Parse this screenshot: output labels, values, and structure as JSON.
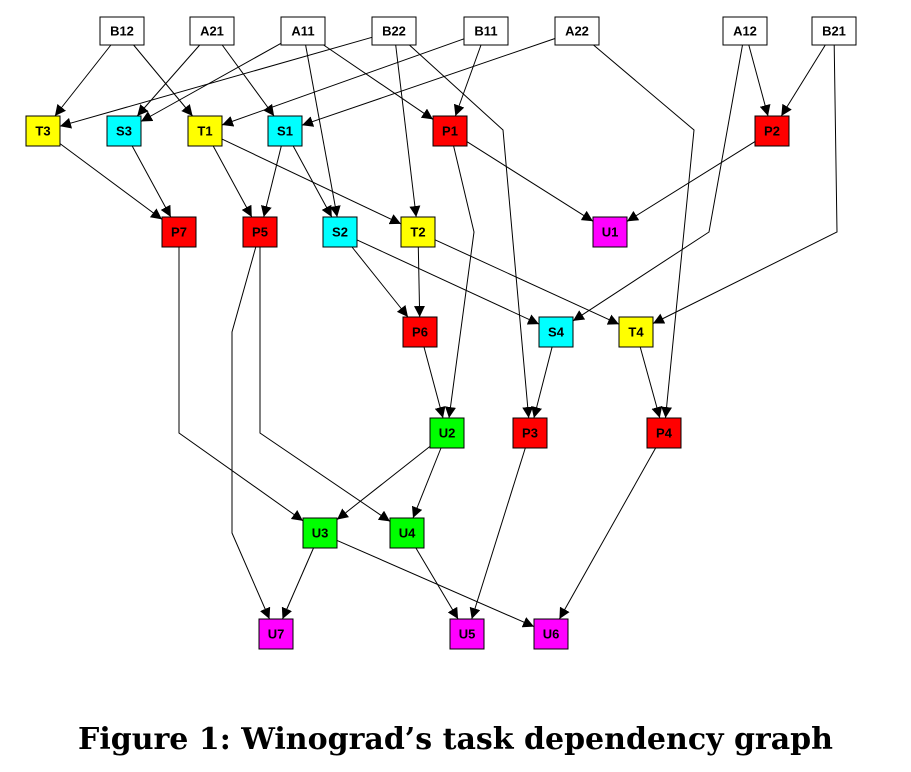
{
  "caption": "Figure 1: Winograd’s task dependency graph",
  "colors": {
    "input": "#ffffff",
    "T": "#ffff00",
    "S": "#00ffff",
    "P": "#ff0000",
    "U_green": "#00ff00",
    "U_magenta": "#ff00ff"
  },
  "nodes": [
    {
      "id": "B12",
      "label": "B12",
      "color": "input"
    },
    {
      "id": "A21",
      "label": "A21",
      "color": "input"
    },
    {
      "id": "A11",
      "label": "A11",
      "color": "input"
    },
    {
      "id": "B22",
      "label": "B22",
      "color": "input"
    },
    {
      "id": "B11",
      "label": "B11",
      "color": "input"
    },
    {
      "id": "A22",
      "label": "A22",
      "color": "input"
    },
    {
      "id": "A12",
      "label": "A12",
      "color": "input"
    },
    {
      "id": "B21",
      "label": "B21",
      "color": "input"
    },
    {
      "id": "T3",
      "label": "T3",
      "color": "T"
    },
    {
      "id": "S3",
      "label": "S3",
      "color": "S"
    },
    {
      "id": "T1",
      "label": "T1",
      "color": "T"
    },
    {
      "id": "S1",
      "label": "S1",
      "color": "S"
    },
    {
      "id": "P1",
      "label": "P1",
      "color": "P"
    },
    {
      "id": "P2",
      "label": "P2",
      "color": "P"
    },
    {
      "id": "P7",
      "label": "P7",
      "color": "P"
    },
    {
      "id": "P5",
      "label": "P5",
      "color": "P"
    },
    {
      "id": "S2",
      "label": "S2",
      "color": "S"
    },
    {
      "id": "T2",
      "label": "T2",
      "color": "T"
    },
    {
      "id": "U1",
      "label": "U1",
      "color": "U_magenta"
    },
    {
      "id": "P6",
      "label": "P6",
      "color": "P"
    },
    {
      "id": "S4",
      "label": "S4",
      "color": "S"
    },
    {
      "id": "T4",
      "label": "T4",
      "color": "T"
    },
    {
      "id": "U2",
      "label": "U2",
      "color": "U_green"
    },
    {
      "id": "P3",
      "label": "P3",
      "color": "P"
    },
    {
      "id": "P4",
      "label": "P4",
      "color": "P"
    },
    {
      "id": "U3",
      "label": "U3",
      "color": "U_green"
    },
    {
      "id": "U4",
      "label": "U4",
      "color": "U_green"
    },
    {
      "id": "U7",
      "label": "U7",
      "color": "U_magenta"
    },
    {
      "id": "U5",
      "label": "U5",
      "color": "U_magenta"
    },
    {
      "id": "U6",
      "label": "U6",
      "color": "U_magenta"
    }
  ],
  "edges": [
    [
      "B12",
      "T3"
    ],
    [
      "B12",
      "T1"
    ],
    [
      "A21",
      "S3"
    ],
    [
      "A21",
      "S1"
    ],
    [
      "A11",
      "S3"
    ],
    [
      "A11",
      "S2"
    ],
    [
      "A11",
      "P1"
    ],
    [
      "B22",
      "T3"
    ],
    [
      "B22",
      "T2"
    ],
    [
      "B22",
      "P3"
    ],
    [
      "B11",
      "T1"
    ],
    [
      "B11",
      "P1"
    ],
    [
      "A22",
      "S1"
    ],
    [
      "A22",
      "P4"
    ],
    [
      "A12",
      "P2"
    ],
    [
      "A12",
      "S4"
    ],
    [
      "B21",
      "P2"
    ],
    [
      "B21",
      "T4"
    ],
    [
      "T3",
      "P7"
    ],
    [
      "S3",
      "P7"
    ],
    [
      "T1",
      "P5"
    ],
    [
      "T1",
      "T2"
    ],
    [
      "S1",
      "P5"
    ],
    [
      "S1",
      "S2"
    ],
    [
      "P1",
      "U1"
    ],
    [
      "P1",
      "U2"
    ],
    [
      "P2",
      "U1"
    ],
    [
      "S2",
      "P6"
    ],
    [
      "S2",
      "S4"
    ],
    [
      "T2",
      "P6"
    ],
    [
      "T2",
      "T4"
    ],
    [
      "P6",
      "U2"
    ],
    [
      "S4",
      "P3"
    ],
    [
      "T4",
      "P4"
    ],
    [
      "P7",
      "U3"
    ],
    [
      "P5",
      "U4"
    ],
    [
      "P5",
      "U7"
    ],
    [
      "U2",
      "U3"
    ],
    [
      "U2",
      "U4"
    ],
    [
      "P3",
      "U5"
    ],
    [
      "P4",
      "U6"
    ],
    [
      "U3",
      "U7"
    ],
    [
      "U3",
      "U6"
    ],
    [
      "U4",
      "U5"
    ]
  ]
}
